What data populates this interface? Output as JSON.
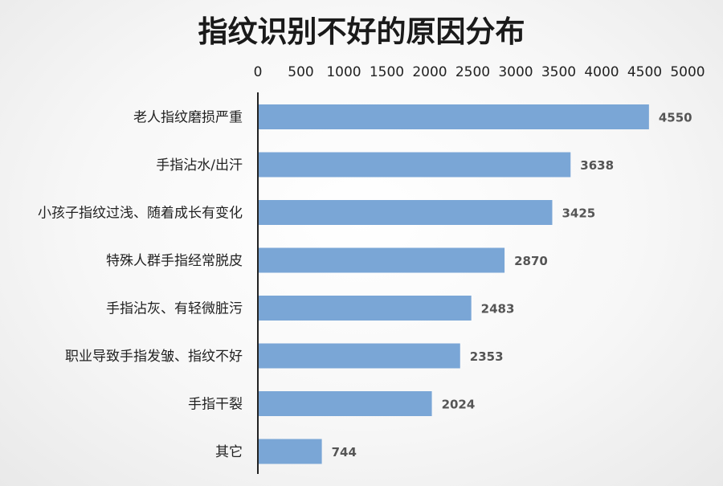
{
  "chart_data": {
    "type": "bar",
    "orientation": "horizontal",
    "title": "指纹识别不好的原因分布",
    "categories": [
      "老人指纹磨损严重",
      "手指沾水/出汗",
      "小孩子指纹过浅、随着成长有变化",
      "特殊人群手指经常脱皮",
      "手指沾灰、有轻微脏污",
      "职业导致手指发皱、指纹不好",
      "手指干裂",
      "其它"
    ],
    "values": [
      4550,
      3638,
      3425,
      2870,
      2483,
      2353,
      2024,
      744
    ],
    "xlim": [
      0,
      5000
    ],
    "xticks": [
      0,
      500,
      1000,
      1500,
      2000,
      2500,
      3000,
      3500,
      4000,
      4500,
      5000
    ],
    "axis_position": "top",
    "grid": false,
    "legend": "none",
    "bar_color": "#7aa6d6"
  }
}
